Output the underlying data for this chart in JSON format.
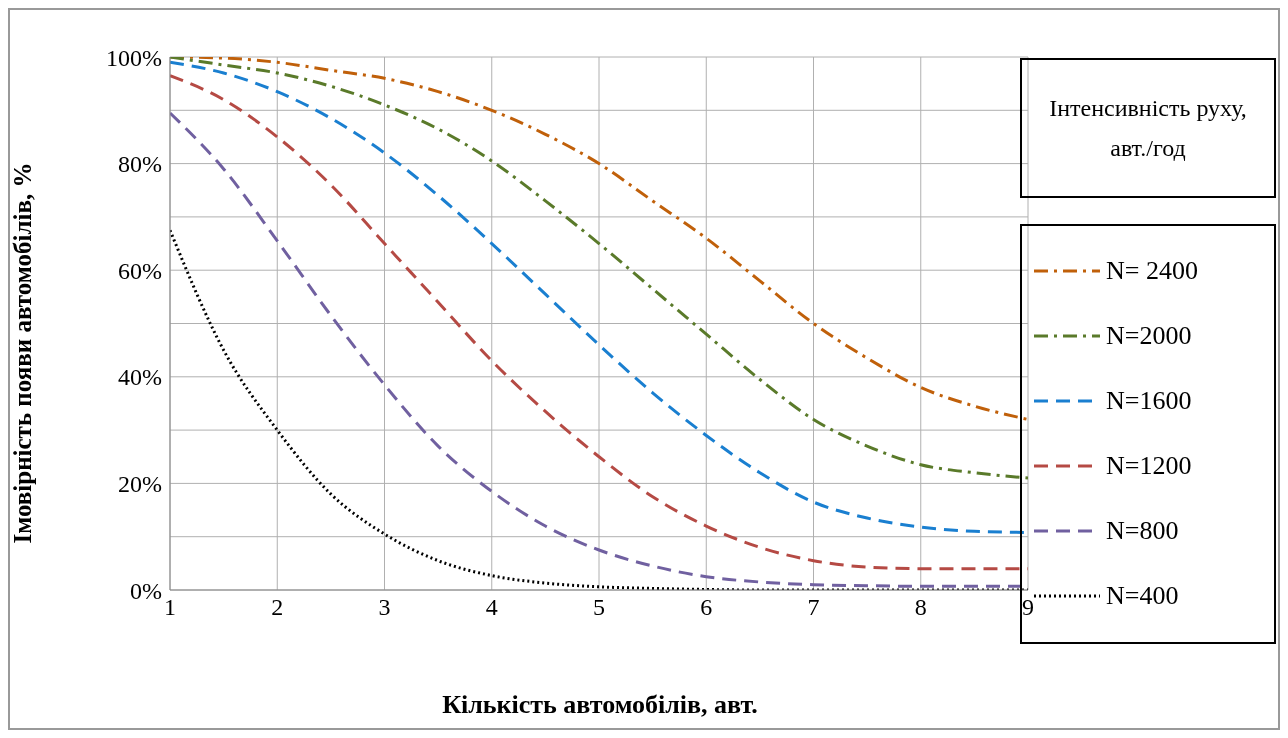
{
  "chart_data": {
    "type": "line",
    "xlabel": "Кількість автомобілів, авт.",
    "ylabel": "Імовірність появи автомобілів, %",
    "legend_title": "Інтенсивність руху, авт./год",
    "x": [
      1,
      1.5,
      2,
      2.5,
      3,
      3.5,
      4,
      4.5,
      5,
      5.5,
      6,
      6.5,
      7,
      7.5,
      8,
      8.5,
      9
    ],
    "xlim": [
      1,
      9
    ],
    "xticks": [
      1,
      2,
      3,
      4,
      5,
      6,
      7,
      8,
      9
    ],
    "ylim": [
      0,
      100
    ],
    "yticks": [
      {
        "value": 0,
        "label": "0%"
      },
      {
        "value": 10,
        "label": null
      },
      {
        "value": 20,
        "label": "20%"
      },
      {
        "value": 30,
        "label": null
      },
      {
        "value": 40,
        "label": "40%"
      },
      {
        "value": 50,
        "label": null
      },
      {
        "value": 60,
        "label": "60%"
      },
      {
        "value": 70,
        "label": null
      },
      {
        "value": 80,
        "label": "80%"
      },
      {
        "value": 90,
        "label": null
      },
      {
        "value": 100,
        "label": "100%"
      }
    ],
    "grid": true,
    "legend": "right",
    "marker": "none",
    "series": [
      {
        "name": "N= 2400",
        "color": "#c0600a",
        "line_style": "dashdot",
        "values": [
          100,
          99.8,
          99,
          97.5,
          96,
          93.5,
          90,
          85.5,
          80,
          73,
          66,
          58,
          50,
          43.5,
          38,
          34.5,
          32
        ]
      },
      {
        "name": "N=2000",
        "color": "#5a7a2a",
        "line_style": "dashdot",
        "values": [
          100,
          98.5,
          97,
          94.5,
          91,
          86.5,
          80.5,
          73,
          65,
          56.5,
          48,
          39.5,
          32,
          27,
          23.5,
          22,
          21
        ]
      },
      {
        "name": "N=1600",
        "color": "#1a7fd0",
        "line_style": "dashed",
        "values": [
          99,
          97,
          93.5,
          88.5,
          82,
          74,
          65,
          55.5,
          46,
          37,
          29,
          22,
          16.5,
          13.5,
          11.8,
          11,
          10.8
        ]
      },
      {
        "name": "N=1200",
        "color": "#b54a44",
        "line_style": "dashed",
        "values": [
          96.5,
          92,
          85,
          76,
          65,
          54,
          43,
          33.5,
          25,
          17.5,
          12,
          8,
          5.5,
          4.3,
          4,
          4,
          4
        ]
      },
      {
        "name": "N=800",
        "color": "#7060a0",
        "line_style": "dashed",
        "values": [
          89.5,
          79,
          65.5,
          51.5,
          38.5,
          27,
          18.5,
          12,
          7.5,
          4.5,
          2.5,
          1.5,
          1,
          0.8,
          0.7,
          0.7,
          0.7
        ]
      },
      {
        "name": "N=400",
        "color": "#000000",
        "line_style": "dotted",
        "values": [
          67.5,
          45,
          30,
          18,
          10.5,
          5.5,
          2.7,
          1.3,
          0.6,
          0.3,
          0.1,
          0,
          0,
          0,
          0,
          0,
          0
        ]
      }
    ]
  }
}
